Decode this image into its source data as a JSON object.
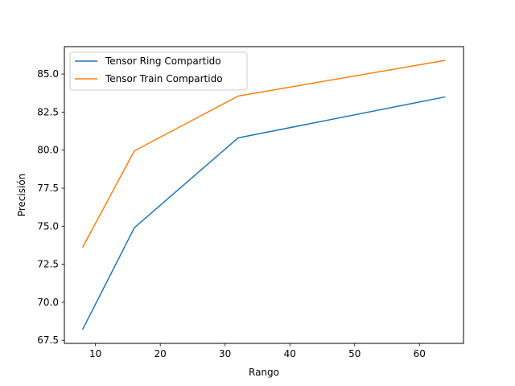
{
  "chart_data": {
    "type": "line",
    "title": "",
    "xlabel": "Rango",
    "ylabel": "Precisión",
    "x": [
      8,
      16,
      32,
      64
    ],
    "series": [
      {
        "name": "Tensor Ring Compartido",
        "values": [
          68.2,
          74.9,
          80.8,
          83.5
        ],
        "color": "#1f77b4"
      },
      {
        "name": "Tensor Train Compartido",
        "values": [
          73.6,
          79.95,
          83.55,
          85.9
        ],
        "color": "#ff7f0e"
      }
    ],
    "xlim": [
      5.2,
      66.8
    ],
    "ylim": [
      67.3,
      86.8
    ],
    "xticks": [
      10,
      20,
      30,
      40,
      50,
      60
    ],
    "yticks": [
      67.5,
      70.0,
      72.5,
      75.0,
      77.5,
      80.0,
      82.5,
      85.0
    ],
    "xtick_labels": [
      "10",
      "20",
      "30",
      "40",
      "50",
      "60"
    ],
    "ytick_labels": [
      "67.5",
      "70.0",
      "72.5",
      "75.0",
      "77.5",
      "80.0",
      "82.5",
      "85.0"
    ],
    "grid": false,
    "legend_position": "top-left"
  }
}
